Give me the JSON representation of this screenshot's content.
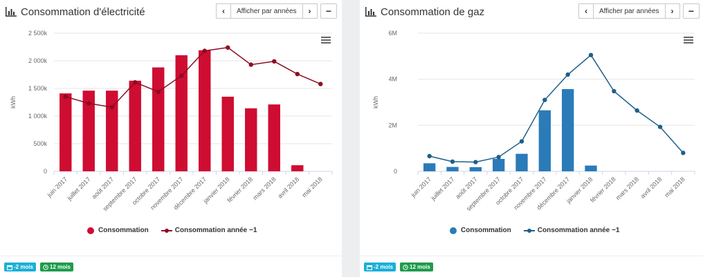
{
  "charts": [
    {
      "title": "Consommation d'électricité",
      "period_button": "Afficher par années",
      "prev_label": "‹",
      "next_label": "›",
      "collapse_label": "−",
      "bar_color": "#cf0c32",
      "line_color": "#8f0b22",
      "badges": [
        "-2 mois",
        "12 mois"
      ],
      "chart_data": {
        "type": "bar",
        "categories": [
          "juin 2017",
          "juillet 2017",
          "août 2017",
          "septembre 2017",
          "octobre 2017",
          "novembre 2017",
          "décembre 2017",
          "janvier 2018",
          "février 2018",
          "mars 2018",
          "avril 2018",
          "mai 2018"
        ],
        "ylabel": "kWh",
        "ylim": [
          0,
          2500000
        ],
        "yticks": [
          0,
          500000,
          1000000,
          1500000,
          2000000,
          2500000
        ],
        "ytick_labels": [
          "0",
          "500k",
          "1 000k",
          "1 500k",
          "2 000k",
          "2 500k"
        ],
        "series": [
          {
            "name": "Consommation",
            "type": "bar",
            "values": [
              1410000,
              1460000,
              1460000,
              1640000,
              1880000,
              2100000,
              2190000,
              1350000,
              1140000,
              1210000,
              110000,
              null
            ]
          },
          {
            "name": "Consommation année −1",
            "type": "line",
            "values": [
              1350000,
              1230000,
              1160000,
              1610000,
              1440000,
              1730000,
              2180000,
              2240000,
              1930000,
              1990000,
              1760000,
              1580000
            ]
          }
        ]
      }
    },
    {
      "title": "Consommation de gaz",
      "period_button": "Afficher par années",
      "prev_label": "‹",
      "next_label": "›",
      "collapse_label": "−",
      "bar_color": "#2b7bb9",
      "line_color": "#1e5f8a",
      "badges": [
        "-2 mois",
        "12 mois"
      ],
      "chart_data": {
        "type": "bar",
        "categories": [
          "juin 2017",
          "juillet 2017",
          "août 2017",
          "septembre 2017",
          "octobre 2017",
          "novembre 2017",
          "décembre 2017",
          "janvier 2018",
          "février 2018",
          "mars 2018",
          "avril 2018",
          "mai 2018"
        ],
        "ylabel": "kWh",
        "ylim": [
          0,
          6000000
        ],
        "yticks": [
          0,
          2000000,
          4000000,
          6000000
        ],
        "ytick_labels": [
          "0",
          "2M",
          "4M",
          "6M"
        ],
        "series": [
          {
            "name": "Consommation",
            "type": "bar",
            "values": [
              350000,
              190000,
              180000,
              540000,
              760000,
              2650000,
              3570000,
              250000,
              null,
              null,
              null,
              null
            ]
          },
          {
            "name": "Consommation année −1",
            "type": "line",
            "values": [
              660000,
              420000,
              400000,
              620000,
              1300000,
              3100000,
              4200000,
              5050000,
              3480000,
              2640000,
              1930000,
              800000
            ]
          }
        ]
      }
    }
  ]
}
